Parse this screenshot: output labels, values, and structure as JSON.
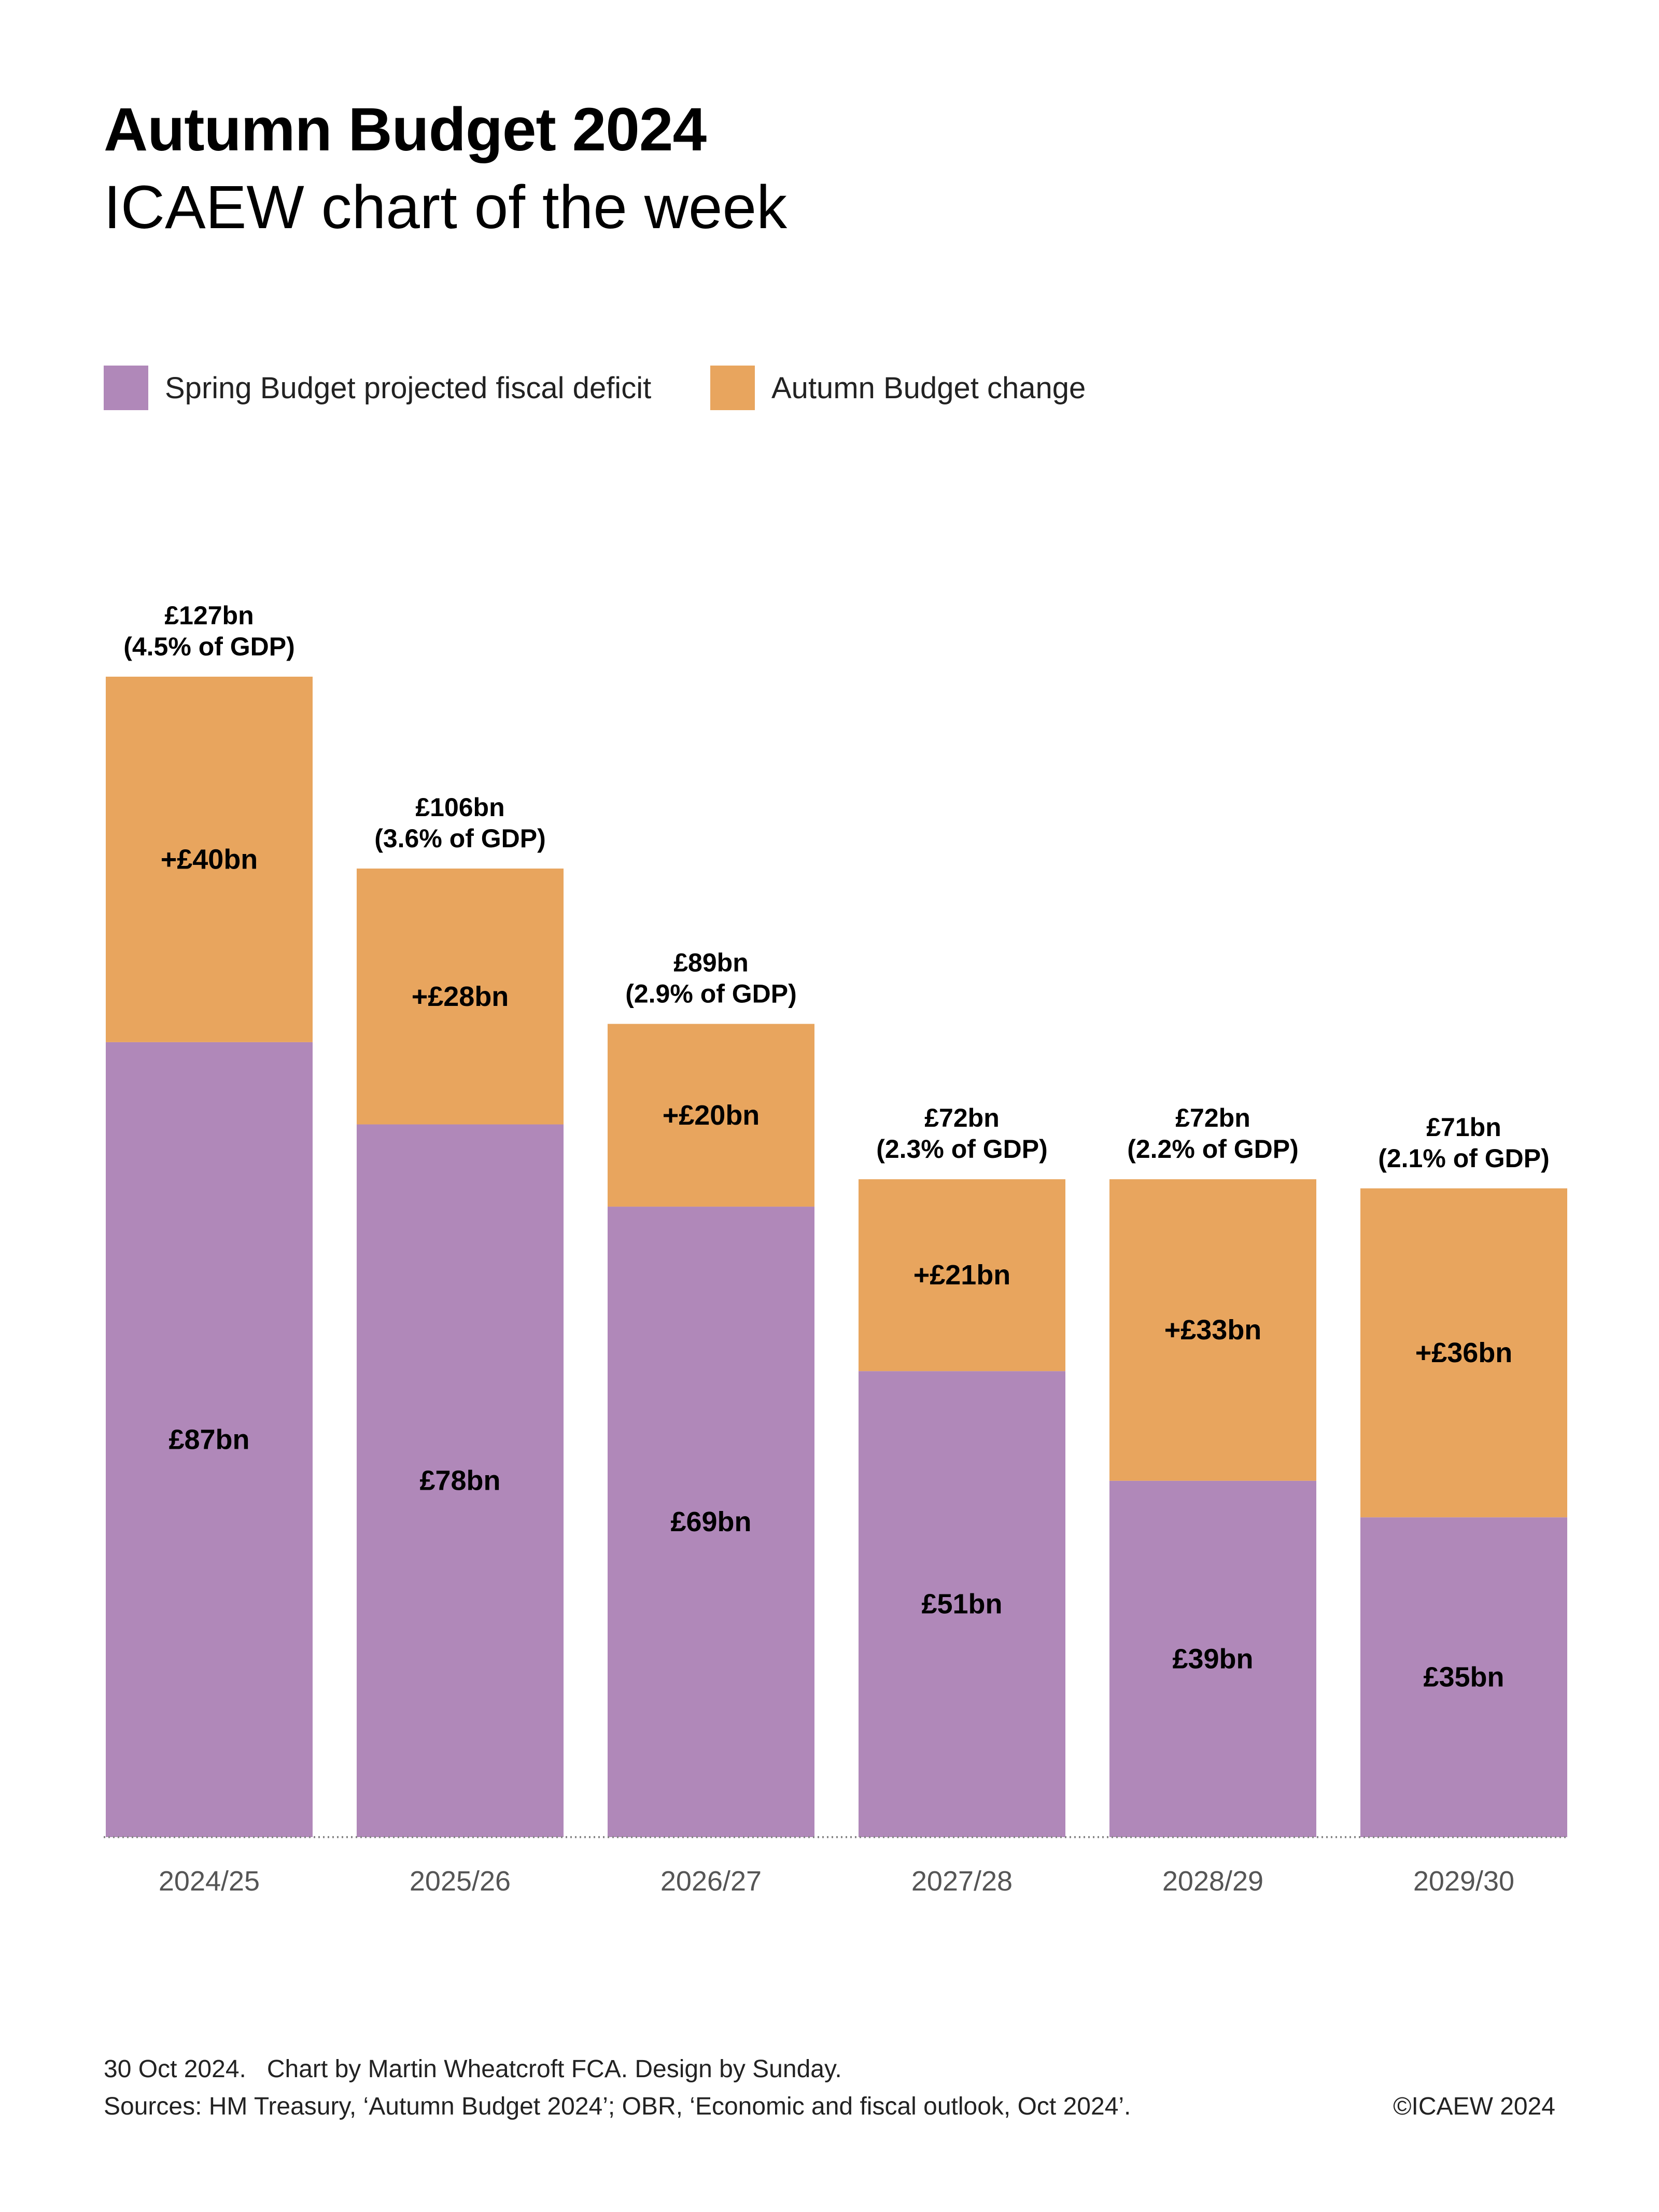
{
  "header": {
    "title": "Autumn Budget 2024",
    "subtitle": "ICAEW chart of the week"
  },
  "legend": [
    {
      "label": "Spring Budget projected fiscal deficit",
      "color": "#b088b9"
    },
    {
      "label": "Autumn Budget change",
      "color": "#e8a55e"
    }
  ],
  "chart_data": {
    "type": "bar",
    "stacked": true,
    "title": "Autumn Budget 2024",
    "xlabel": "",
    "ylabel": "",
    "ylim": [
      0,
      127
    ],
    "grid": false,
    "legend_position": "top-left",
    "categories": [
      "2024/25",
      "2025/26",
      "2026/27",
      "2027/28",
      "2028/29",
      "2029/30"
    ],
    "series": [
      {
        "name": "Spring Budget projected fiscal deficit",
        "color": "#b088b9",
        "values": [
          87,
          78,
          69,
          51,
          39,
          35
        ],
        "labels": [
          "£87bn",
          "£78bn",
          "£69bn",
          "£51bn",
          "£39bn",
          "£35bn"
        ]
      },
      {
        "name": "Autumn Budget change",
        "color": "#e8a55e",
        "values": [
          40,
          28,
          20,
          21,
          33,
          36
        ],
        "labels": [
          "+£40bn",
          "+£28bn",
          "+£20bn",
          "+£21bn",
          "+£33bn",
          "+£36bn"
        ]
      }
    ],
    "totals": [
      {
        "value": 127,
        "amount": "£127bn",
        "gdp": "(4.5% of GDP)"
      },
      {
        "value": 106,
        "amount": "£106bn",
        "gdp": "(3.6% of GDP)"
      },
      {
        "value": 89,
        "amount": "£89bn",
        "gdp": "(2.9% of GDP)"
      },
      {
        "value": 72,
        "amount": "£72bn",
        "gdp": "(2.3% of GDP)"
      },
      {
        "value": 72,
        "amount": "£72bn",
        "gdp": "(2.2% of GDP)"
      },
      {
        "value": 71,
        "amount": "£71bn",
        "gdp": "(2.1% of GDP)"
      }
    ]
  },
  "footer": {
    "line1": "30 Oct 2024.   Chart by Martin Wheatcroft FCA. Design by Sunday.",
    "line2": "Sources: HM Treasury, ‘Autumn Budget 2024’; OBR, ‘Economic and fiscal outlook, Oct 2024’.",
    "copyright": "©ICAEW 2024"
  }
}
